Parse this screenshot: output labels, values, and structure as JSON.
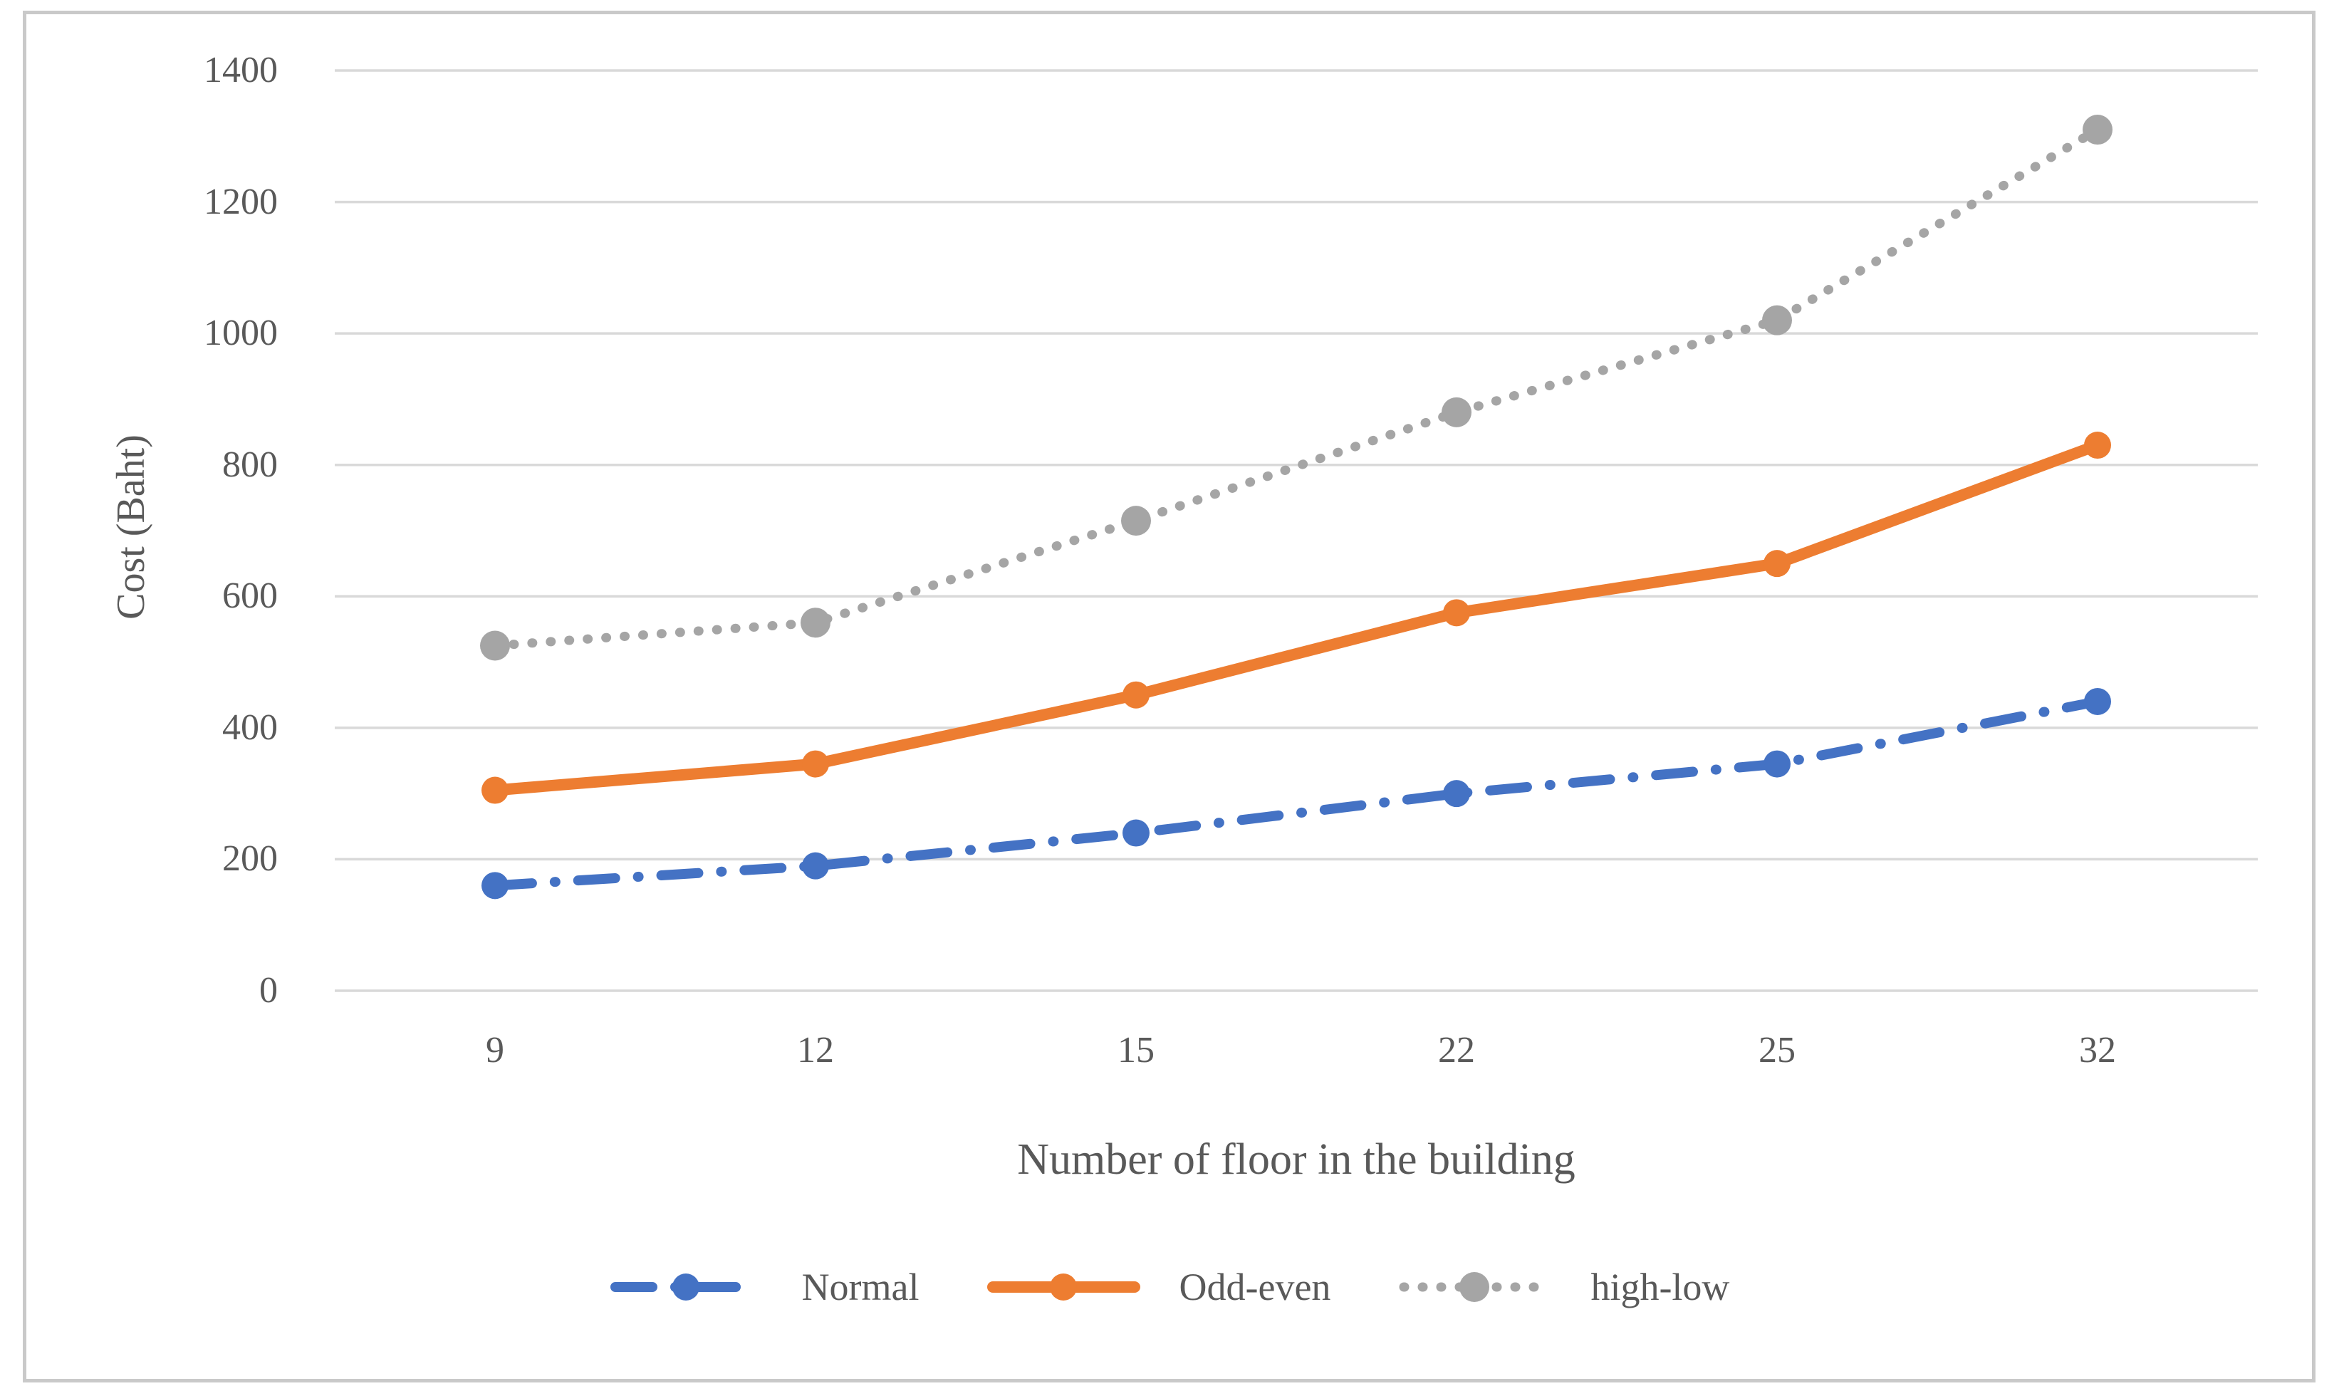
{
  "figure": {
    "background_color": "#ffffff",
    "frame_border_color": "#c9c9c9"
  },
  "chart_data": {
    "type": "line",
    "title": "",
    "xlabel": "Number of floor in the building",
    "ylabel": "Cost (Baht)",
    "categories": [
      "9",
      "12",
      "15",
      "22",
      "25",
      "32"
    ],
    "series": [
      {
        "name": "Normal",
        "color": "#4472C4",
        "line_style": "dash-dot",
        "marker": "circle",
        "values": [
          160,
          190,
          240,
          300,
          345,
          440
        ]
      },
      {
        "name": "Odd-even",
        "color": "#ED7D31",
        "line_style": "solid",
        "marker": "circle",
        "values": [
          305,
          345,
          450,
          575,
          650,
          830
        ]
      },
      {
        "name": "high-low",
        "color": "#A5A5A5",
        "line_style": "dotted",
        "marker": "circle",
        "values": [
          525,
          560,
          715,
          880,
          1020,
          1310
        ]
      }
    ],
    "y_ticks": [
      0,
      200,
      400,
      600,
      800,
      1000,
      1200,
      1400
    ],
    "ylim": [
      0,
      1400
    ],
    "grid": "horizontal",
    "gridline_color": "#d9d9d9",
    "text_color": "#595959",
    "legend_position": "bottom"
  }
}
